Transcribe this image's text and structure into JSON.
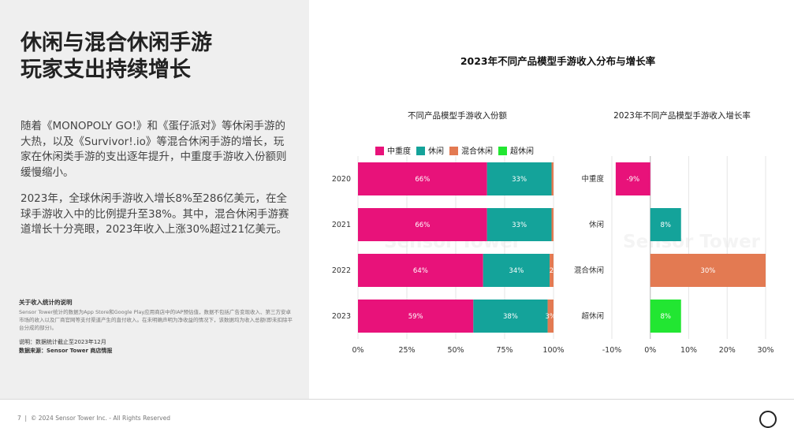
{
  "headline": "休闲与混合休闲手游\n玩家支出持续增长",
  "paragraphs": [
    "随着《MONOPOLY GO!》和《蛋仔派对》等休闲手游的大热，以及《Survivor!.io》等混合休闲手游的增长，玩家在休闲类手游的支出逐年提升，中重度手游收入份额则缓慢缩小。",
    "2023年，全球休闲手游收入增长8%至286亿美元，在全球手游收入中的比例提升至38%。其中，混合休闲手游赛道增长十分亮眼，2023年收入上涨30%超过21亿美元。"
  ],
  "note": {
    "title": "关于收入统计的说明",
    "body": "Sensor Tower统计的数据为App Store和Google Play应用商店中的IAP预估值，数据不包括广告变现收入、第三方安卓市场的收入以及厂商官网等支付渠道产生的直付收入。在未明确声明为净收益的情况下，该数据均为收入总额(即未扣除平台分成的部分)。",
    "cutoff": "说明：数据统计截止至2023年12月",
    "source": "数据来源：Sensor Tower 商店情报"
  },
  "footer": {
    "page": "7",
    "copyright": "© 2024 Sensor Tower Inc. - All Rights Reserved"
  },
  "watermark": "Sensor Tower",
  "figure_title": "2023年不同产品模型手游收入分布与增长率",
  "colors": {
    "中重度": "#e8127a",
    "休闲": "#14a39a",
    "混合休闲": "#e37a52",
    "超休闲": "#22e632"
  },
  "chart_data": [
    {
      "type": "bar",
      "orientation": "horizontal",
      "stacked": true,
      "title": "不同产品模型手游收入份额",
      "categories": [
        "2020",
        "2021",
        "2022",
        "2023"
      ],
      "series": [
        {
          "name": "中重度",
          "values": [
            66,
            66,
            64,
            59
          ]
        },
        {
          "name": "休闲",
          "values": [
            33,
            33,
            34,
            38
          ]
        },
        {
          "name": "混合休闲",
          "values": [
            1,
            1,
            2,
            3
          ]
        },
        {
          "name": "超休闲",
          "values": [
            0,
            0,
            0,
            0
          ]
        }
      ],
      "labels": [
        [
          "66%",
          "33%",
          "",
          ""
        ],
        [
          "66%",
          "33%",
          "",
          ""
        ],
        [
          "64%",
          "34%",
          "2",
          ""
        ],
        [
          "59%",
          "38%",
          "3%",
          ""
        ]
      ],
      "xlim": [
        0,
        100
      ],
      "xticks": [
        "0%",
        "25%",
        "50%",
        "75%",
        "100%"
      ],
      "legend": "top",
      "grid": true
    },
    {
      "type": "bar",
      "orientation": "horizontal",
      "title": "2023年不同产品模型手游收入增长率",
      "categories": [
        "中重度",
        "休闲",
        "混合休闲",
        "超休闲"
      ],
      "values": [
        -9,
        8,
        30,
        8
      ],
      "labels": [
        "-9%",
        "8%",
        "30%",
        "8%"
      ],
      "xlim": [
        -10,
        30
      ],
      "xticks": [
        "-10%",
        "0%",
        "10%",
        "20%",
        "30%"
      ],
      "grid": true
    }
  ]
}
